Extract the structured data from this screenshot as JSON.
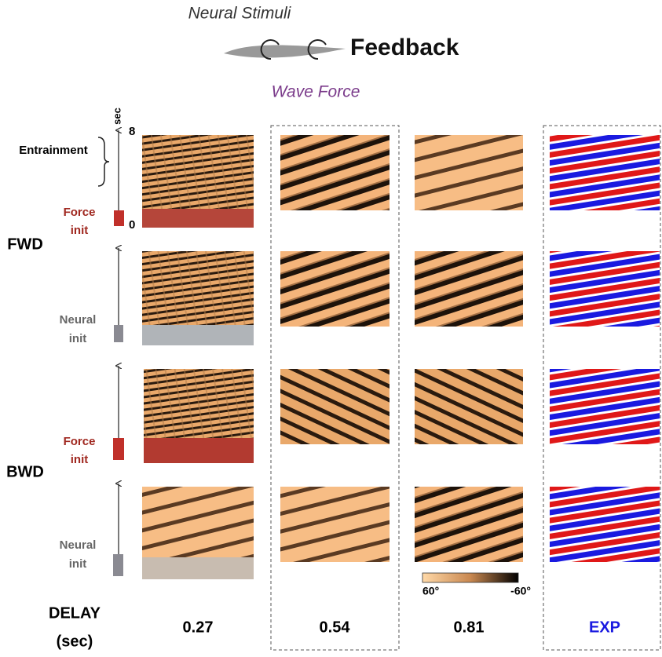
{
  "header": {
    "neural_stimuli": "Neural Stimuli",
    "feedback": "Feedback",
    "wave_force": "Wave Force"
  },
  "axis": {
    "unit": "sec",
    "max": "8",
    "min": "0"
  },
  "entrainment": "Entrainment",
  "directions": [
    "FWD",
    "BWD"
  ],
  "rows": [
    {
      "init": [
        "Force",
        "init"
      ]
    },
    {
      "init": [
        "Neural",
        "init"
      ]
    },
    {
      "init": [
        "Force",
        "init"
      ]
    },
    {
      "init": [
        "Neural",
        "init"
      ]
    }
  ],
  "footer": {
    "delay": "DELAY",
    "delay_unit": "(sec)",
    "columns": [
      "0.27",
      "0.54",
      "0.81",
      "EXP"
    ]
  },
  "colorbar": {
    "max_label": "60°",
    "min_label": "-60°"
  }
}
